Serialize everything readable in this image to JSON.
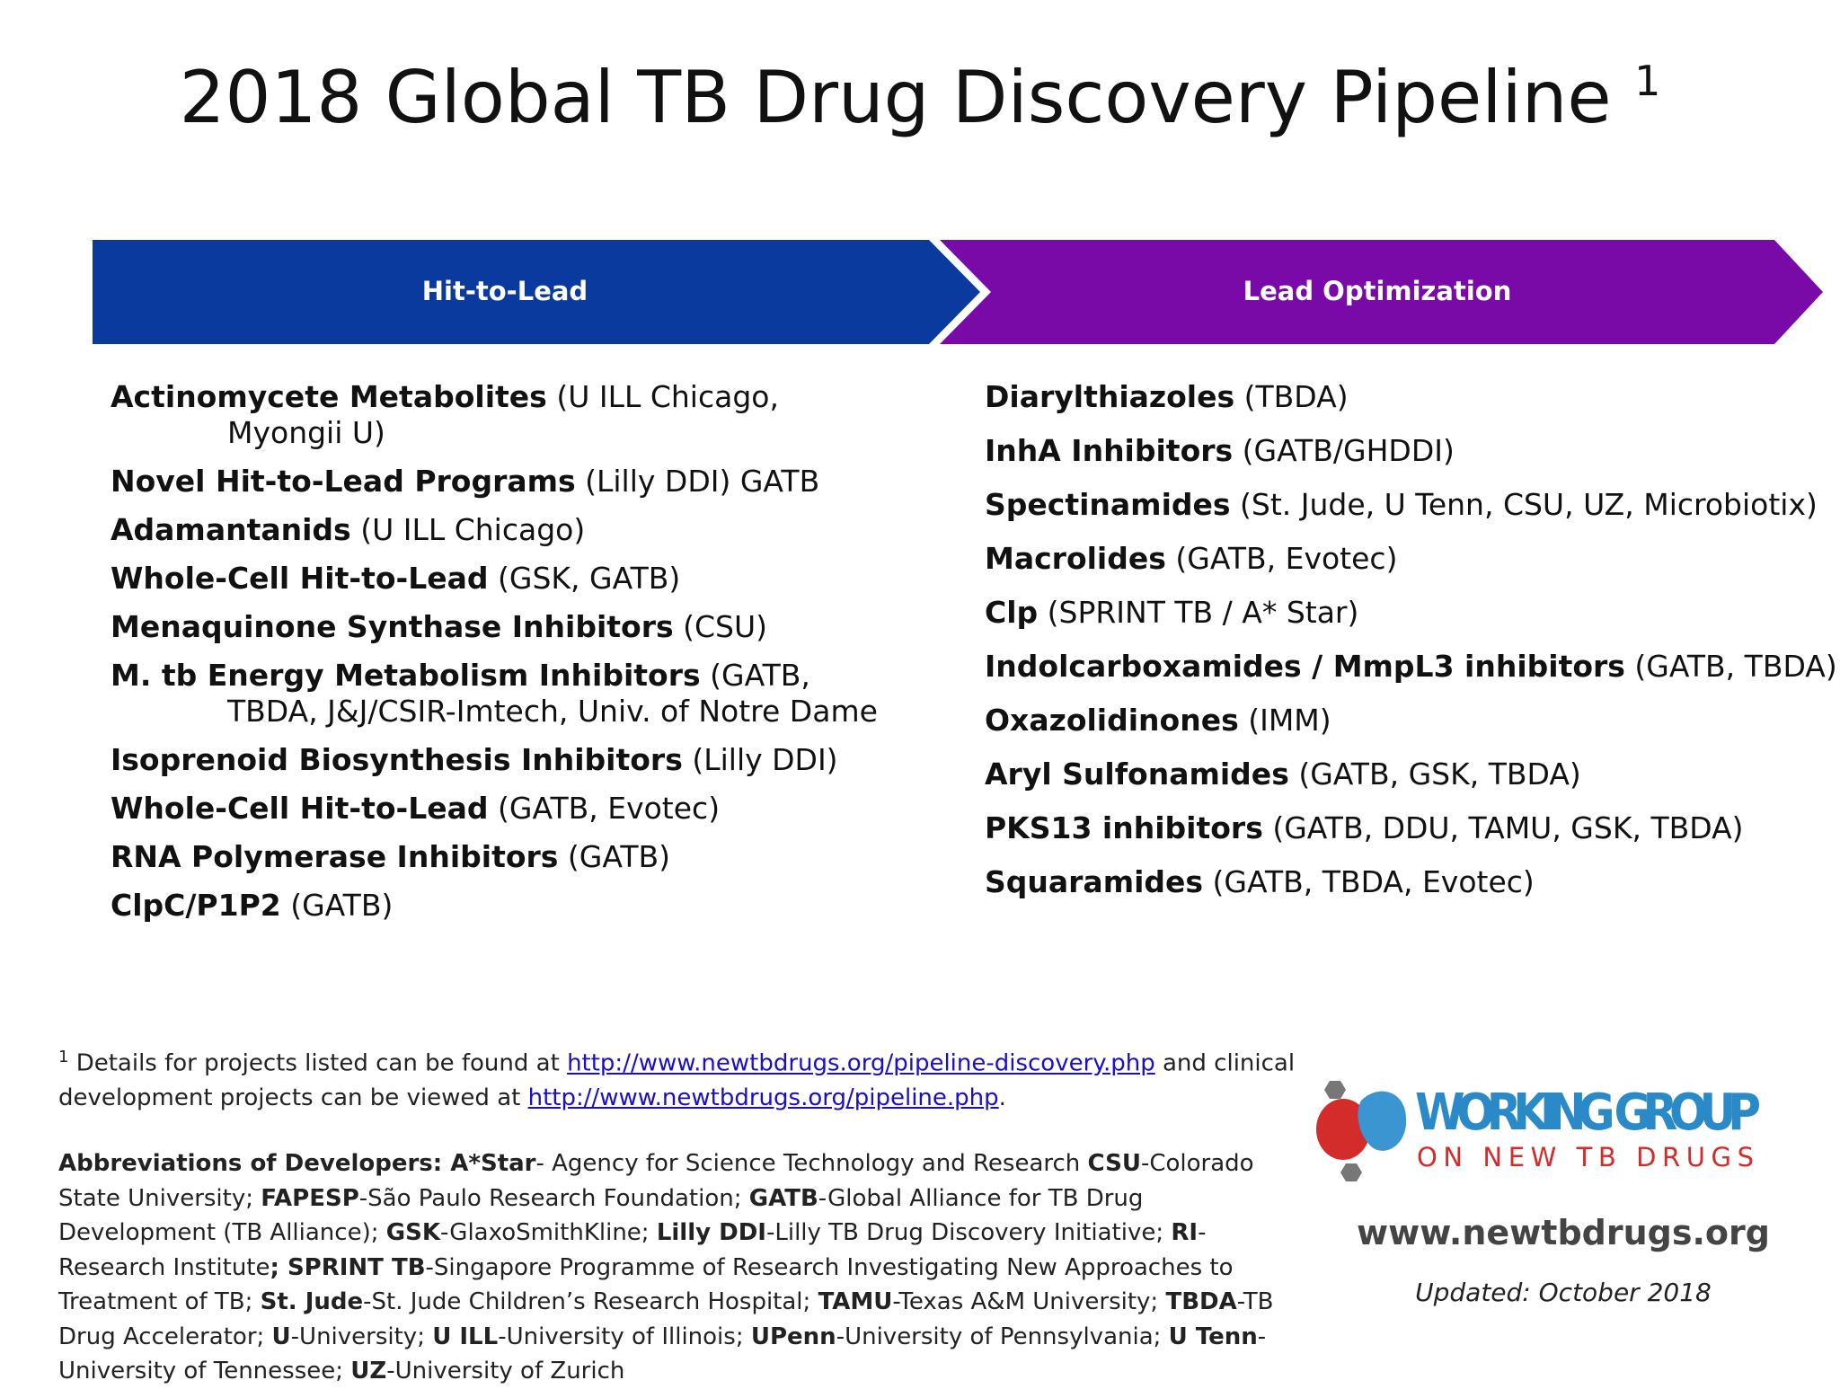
{
  "title": "2018 Global TB Drug Discovery Pipeline",
  "title_superscript": "1",
  "phases": [
    "Hit-to-Lead",
    "Lead Optimization"
  ],
  "hit_to_lead": [
    {
      "name": "Actinomycete Metabolites",
      "detail": " (U ILL Chicago, Myongii U)"
    },
    {
      "name": "Novel Hit-to-Lead Programs",
      "detail": " (Lilly DDI) GATB"
    },
    {
      "name": "Adamantanids",
      "detail": " (U ILL Chicago)"
    },
    {
      "name": "Whole-Cell Hit-to-Lead",
      "detail": " (GSK, GATB)"
    },
    {
      "name": "Menaquinone Synthase Inhibitors",
      "detail": " (CSU)"
    },
    {
      "name": "M. tb  Energy Metabolism Inhibitors",
      "detail": " (GATB, TBDA, J&J/CSIR-Imtech, Univ. of Notre Dame"
    },
    {
      "name": "Isoprenoid Biosynthesis Inhibitors",
      "detail": " (Lilly DDI)"
    },
    {
      "name": "Whole-Cell Hit-to-Lead",
      "detail": " (GATB, Evotec)"
    },
    {
      "name": "RNA Polymerase Inhibitors",
      "detail": " (GATB)"
    },
    {
      "name": "ClpC/P1P2",
      "detail": " (GATB)"
    }
  ],
  "lead_optimization": [
    {
      "name": "Diarylthiazoles",
      "detail": " (TBDA)"
    },
    {
      "name": "InhA Inhibitors",
      "detail": " (GATB/GHDDI)"
    },
    {
      "name": "Spectinamides",
      "detail": " (St. Jude, U Tenn, CSU, UZ, Microbiotix)"
    },
    {
      "name": "Macrolides",
      "detail": " (GATB, Evotec)"
    },
    {
      "name": "Clp",
      "detail": " (SPRINT TB / A* Star)"
    },
    {
      "name": "Indolcarboxamides / MmpL3 inhibitors",
      "detail": " (GATB, TBDA)"
    },
    {
      "name": "Oxazolidinones",
      "detail": " (IMM)"
    },
    {
      "name": "Aryl Sulfonamides",
      "detail": " (GATB, GSK, TBDA)"
    },
    {
      "name": "PKS13 inhibitors",
      "detail": " (GATB, DDU, TAMU, GSK, TBDA)"
    },
    {
      "name": "Squaramides",
      "detail": " (GATB, TBDA, Evotec)"
    }
  ],
  "footnote": {
    "marker": "1",
    "text1": " Details for projects listed can be found at ",
    "link1": "http://www.newtbdrugs.org/pipeline-discovery.php",
    "text2": " and clinical development projects can be viewed at ",
    "link2": "http://www.newtbdrugs.org/pipeline.php",
    "text3": "."
  },
  "abbreviations": {
    "label": "Abbreviations of Developers:  ",
    "entries": [
      {
        "term": "A*Star",
        "definition": "- Agency for Science Technology and Research "
      },
      {
        "term": "CSU",
        "definition": "-Colorado State University; "
      },
      {
        "term": "FAPESP",
        "definition": "-São Paulo Research Foundation; "
      },
      {
        "term": "GATB",
        "definition": "-Global Alliance for TB Drug Development (TB Alliance); "
      },
      {
        "term": "GSK",
        "definition": "-GlaxoSmithKline; "
      },
      {
        "term": "Lilly DDI",
        "definition": "-Lilly TB Drug Discovery Initiative; "
      },
      {
        "term": "RI",
        "definition": "-Research Institute"
      },
      {
        "term": "; SPRINT TB",
        "definition": "-Singapore Programme of Research Investigating New Approaches to Treatment of TB; "
      },
      {
        "term": "St. Jude",
        "definition": "-St. Jude Children’s Research Hospital; "
      },
      {
        "term": "TAMU",
        "definition": "-Texas A&M University; "
      },
      {
        "term": "TBDA",
        "definition": "-TB Drug Accelerator; "
      },
      {
        "term": "U",
        "definition": "-University; "
      },
      {
        "term": "U ILL",
        "definition": "-University of Illinois; "
      },
      {
        "term": "UPenn",
        "definition": "-University of Pennsylvania; "
      },
      {
        "term": "U Tenn",
        "definition": "-University of Tennessee; "
      },
      {
        "term": "UZ",
        "definition": "-University of Zurich"
      }
    ]
  },
  "logo": {
    "line1": "WORKING GROUP",
    "line2": "ON NEW TB DRUGS"
  },
  "website": "www.newtbdrugs.org",
  "updated": "Updated: October 2018"
}
